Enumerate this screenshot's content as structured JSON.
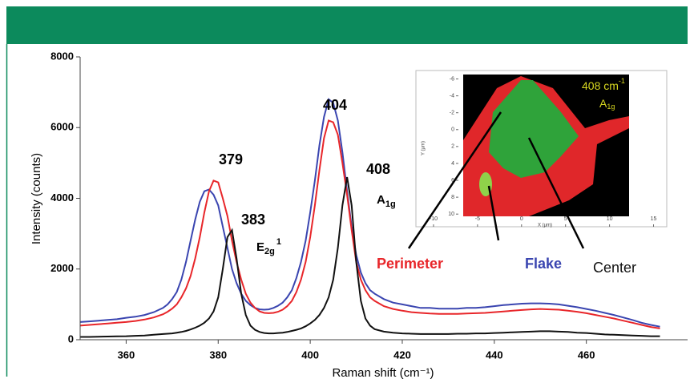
{
  "chart_data": {
    "type": "line",
    "xlabel": "Raman shift (cm⁻¹)",
    "ylabel": "Intensity (counts)",
    "xlim": [
      350,
      482
    ],
    "ylim": [
      0,
      8000
    ],
    "xticks": [
      360,
      380,
      400,
      420,
      440,
      460
    ],
    "yticks": [
      0,
      2000,
      4000,
      6000,
      8000
    ],
    "x": [
      350,
      352,
      354,
      356,
      358,
      360,
      362,
      364,
      366,
      368,
      369,
      370,
      371,
      372,
      373,
      374,
      375,
      376,
      377,
      378,
      379,
      380,
      381,
      382,
      383,
      384,
      385,
      386,
      387,
      388,
      389,
      390,
      391,
      392,
      393,
      394,
      395,
      396,
      397,
      398,
      399,
      400,
      401,
      402,
      403,
      404,
      405,
      406,
      407,
      408,
      409,
      410,
      411,
      412,
      413,
      414,
      416,
      418,
      420,
      422,
      424,
      426,
      428,
      430,
      432,
      434,
      436,
      438,
      440,
      442,
      444,
      446,
      448,
      450,
      452,
      454,
      456,
      458,
      460,
      462,
      464,
      466,
      468,
      470,
      472,
      474,
      476
    ],
    "series": [
      {
        "name": "Flake",
        "color": "#3a45b0",
        "values": [
          500,
          520,
          540,
          560,
          580,
          620,
          650,
          700,
          780,
          900,
          1000,
          1150,
          1350,
          1700,
          2200,
          2800,
          3400,
          3900,
          4200,
          4250,
          4100,
          3800,
          3200,
          2600,
          2000,
          1600,
          1300,
          1100,
          980,
          900,
          860,
          850,
          860,
          900,
          960,
          1050,
          1200,
          1400,
          1750,
          2200,
          2800,
          3600,
          4500,
          5500,
          6300,
          6800,
          6700,
          6200,
          5300,
          4200,
          3200,
          2400,
          1900,
          1600,
          1400,
          1300,
          1150,
          1050,
          1000,
          950,
          900,
          900,
          880,
          880,
          880,
          900,
          900,
          920,
          950,
          980,
          1000,
          1020,
          1030,
          1030,
          1020,
          1000,
          960,
          920,
          870,
          820,
          760,
          700,
          630,
          560,
          480,
          420,
          370
        ]
      },
      {
        "name": "Perimeter",
        "color": "#e8262a",
        "values": [
          400,
          420,
          440,
          460,
          480,
          500,
          530,
          570,
          630,
          720,
          790,
          880,
          1000,
          1200,
          1450,
          1800,
          2300,
          2900,
          3600,
          4200,
          4500,
          4450,
          4000,
          3500,
          2800,
          2200,
          1700,
          1300,
          1050,
          900,
          800,
          760,
          750,
          760,
          790,
          850,
          950,
          1100,
          1350,
          1700,
          2200,
          2900,
          3800,
          4800,
          5700,
          6200,
          6150,
          5800,
          5000,
          4100,
          3100,
          2200,
          1700,
          1400,
          1200,
          1100,
          950,
          870,
          820,
          780,
          760,
          740,
          730,
          730,
          730,
          740,
          750,
          760,
          780,
          800,
          820,
          840,
          860,
          870,
          860,
          850,
          820,
          790,
          750,
          700,
          650,
          600,
          540,
          480,
          420,
          360,
          320
        ]
      },
      {
        "name": "Center",
        "color": "#111111",
        "values": [
          80,
          80,
          85,
          90,
          95,
          100,
          110,
          120,
          140,
          160,
          170,
          180,
          200,
          220,
          250,
          290,
          340,
          400,
          480,
          600,
          800,
          1200,
          2000,
          2900,
          3100,
          2300,
          1300,
          700,
          400,
          280,
          220,
          190,
          180,
          180,
          190,
          200,
          220,
          250,
          280,
          320,
          380,
          460,
          560,
          700,
          900,
          1200,
          1700,
          2600,
          3800,
          4600,
          3800,
          2200,
          1100,
          600,
          400,
          300,
          230,
          200,
          180,
          170,
          160,
          160,
          160,
          160,
          170,
          170,
          180,
          180,
          190,
          200,
          210,
          220,
          230,
          240,
          240,
          230,
          220,
          200,
          190,
          170,
          150,
          140,
          130,
          120,
          110,
          100,
          100
        ]
      }
    ],
    "annotations": [
      {
        "text": "379"
      },
      {
        "text": "383"
      },
      {
        "text": "E",
        "sub": "2g",
        "sup": "1"
      },
      {
        "text": "404"
      },
      {
        "text": "408"
      },
      {
        "text": "A",
        "sub": "1g"
      }
    ],
    "inset": {
      "title": "408 cm",
      "title_sup": "-1",
      "subtitle": {
        "text": "A",
        "sub": "1g"
      },
      "xlabel": "X (µm)",
      "ylabel": "Y (µm)",
      "xlim": [
        -12,
        16.5
      ],
      "ylim": [
        -7,
        11.5
      ],
      "xticks": [
        -10,
        -5,
        0,
        5,
        10,
        15
      ],
      "yticks": [
        -6,
        -4,
        -2,
        0,
        2,
        4,
        6,
        8,
        10
      ]
    }
  }
}
